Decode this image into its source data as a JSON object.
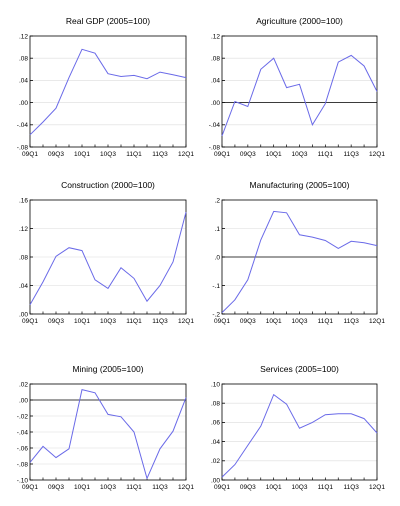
{
  "x_tick_labels": [
    "09Q1",
    "09Q3",
    "10Q1",
    "10Q3",
    "11Q1",
    "11Q3",
    "12Q1"
  ],
  "line_color": "#6a6ae8",
  "chart_data": [
    {
      "type": "line",
      "title": "Real GDP (2005=100)",
      "x": [
        "09Q1",
        "09Q2",
        "09Q3",
        "09Q4",
        "10Q1",
        "10Q2",
        "10Q3",
        "10Q4",
        "11Q1",
        "11Q2",
        "11Q3",
        "11Q4",
        "12Q1"
      ],
      "values": [
        -0.058,
        -0.035,
        -0.01,
        0.045,
        0.096,
        0.089,
        0.052,
        0.047,
        0.049,
        0.043,
        0.055,
        0.05,
        0.045
      ],
      "ylim": [
        -0.08,
        0.12
      ],
      "yticks": [
        -0.08,
        -0.04,
        0.0,
        0.04,
        0.08,
        0.12
      ],
      "ytick_labels": [
        "-.08",
        "-.04",
        ".00",
        ".04",
        ".08",
        ".12"
      ],
      "zero_line": false
    },
    {
      "type": "line",
      "title": "Agriculture (2000=100)",
      "x": [
        "09Q1",
        "09Q2",
        "09Q3",
        "09Q4",
        "10Q1",
        "10Q2",
        "10Q3",
        "10Q4",
        "11Q1",
        "11Q2",
        "11Q3",
        "11Q4",
        "12Q1"
      ],
      "values": [
        -0.06,
        0.002,
        -0.007,
        0.06,
        0.08,
        0.027,
        0.033,
        -0.04,
        -0.002,
        0.073,
        0.085,
        0.066,
        0.02
      ],
      "ylim": [
        -0.08,
        0.12
      ],
      "yticks": [
        -0.08,
        -0.04,
        0.0,
        0.04,
        0.08,
        0.12
      ],
      "ytick_labels": [
        "-.08",
        "-.04",
        ".00",
        ".04",
        ".08",
        ".12"
      ],
      "zero_line": true
    },
    {
      "type": "line",
      "title": "Construction (2000=100)",
      "x": [
        "09Q1",
        "09Q2",
        "09Q3",
        "09Q4",
        "10Q1",
        "10Q2",
        "10Q3",
        "10Q4",
        "11Q1",
        "11Q2",
        "11Q3",
        "11Q4",
        "12Q1"
      ],
      "values": [
        0.013,
        0.045,
        0.081,
        0.093,
        0.089,
        0.048,
        0.036,
        0.065,
        0.05,
        0.018,
        0.04,
        0.073,
        0.143
      ],
      "ylim": [
        0.0,
        0.16
      ],
      "yticks": [
        0.0,
        0.04,
        0.08,
        0.12,
        0.16
      ],
      "ytick_labels": [
        ".00",
        ".04",
        ".08",
        ".12",
        ".16"
      ],
      "zero_line": false
    },
    {
      "type": "line",
      "title": "Manufacturing (2005=100)",
      "x": [
        "09Q1",
        "09Q2",
        "09Q3",
        "09Q4",
        "10Q1",
        "10Q2",
        "10Q3",
        "10Q4",
        "11Q1",
        "11Q2",
        "11Q3",
        "11Q4",
        "12Q1"
      ],
      "values": [
        -0.195,
        -0.15,
        -0.08,
        0.06,
        0.16,
        0.155,
        0.078,
        0.07,
        0.058,
        0.03,
        0.055,
        0.05,
        0.04
      ],
      "ylim": [
        -0.2,
        0.2
      ],
      "yticks": [
        -0.2,
        -0.1,
        0.0,
        0.1,
        0.2
      ],
      "ytick_labels": [
        "-.2",
        "-.1",
        ".0",
        ".1",
        ".2"
      ],
      "zero_line": true
    },
    {
      "type": "line",
      "title": "Mining (2005=100)",
      "x": [
        "09Q1",
        "09Q2",
        "09Q3",
        "09Q4",
        "10Q1",
        "10Q2",
        "10Q3",
        "10Q4",
        "11Q1",
        "11Q2",
        "11Q3",
        "11Q4",
        "12Q1"
      ],
      "values": [
        -0.078,
        -0.058,
        -0.072,
        -0.061,
        0.013,
        0.009,
        -0.018,
        -0.021,
        -0.04,
        -0.098,
        -0.061,
        -0.039,
        0.003
      ],
      "ylim": [
        -0.1,
        0.02
      ],
      "yticks": [
        -0.1,
        -0.08,
        -0.06,
        -0.04,
        -0.02,
        0.0,
        0.02
      ],
      "ytick_labels": [
        "-.10",
        "-.08",
        "-.06",
        "-.04",
        "-.02",
        ".00",
        ".02"
      ],
      "zero_line": true
    },
    {
      "type": "line",
      "title": "Services (2005=100)",
      "x": [
        "09Q1",
        "09Q2",
        "09Q3",
        "09Q4",
        "10Q1",
        "10Q2",
        "10Q3",
        "10Q4",
        "11Q1",
        "11Q2",
        "11Q3",
        "11Q4",
        "12Q1"
      ],
      "values": [
        0.003,
        0.016,
        0.036,
        0.056,
        0.089,
        0.079,
        0.054,
        0.06,
        0.068,
        0.069,
        0.069,
        0.064,
        0.049
      ],
      "ylim": [
        0.0,
        0.1
      ],
      "yticks": [
        0.0,
        0.02,
        0.04,
        0.06,
        0.08,
        0.1
      ],
      "ytick_labels": [
        ".00",
        ".02",
        ".04",
        ".06",
        ".08",
        ".10"
      ],
      "zero_line": false
    }
  ]
}
